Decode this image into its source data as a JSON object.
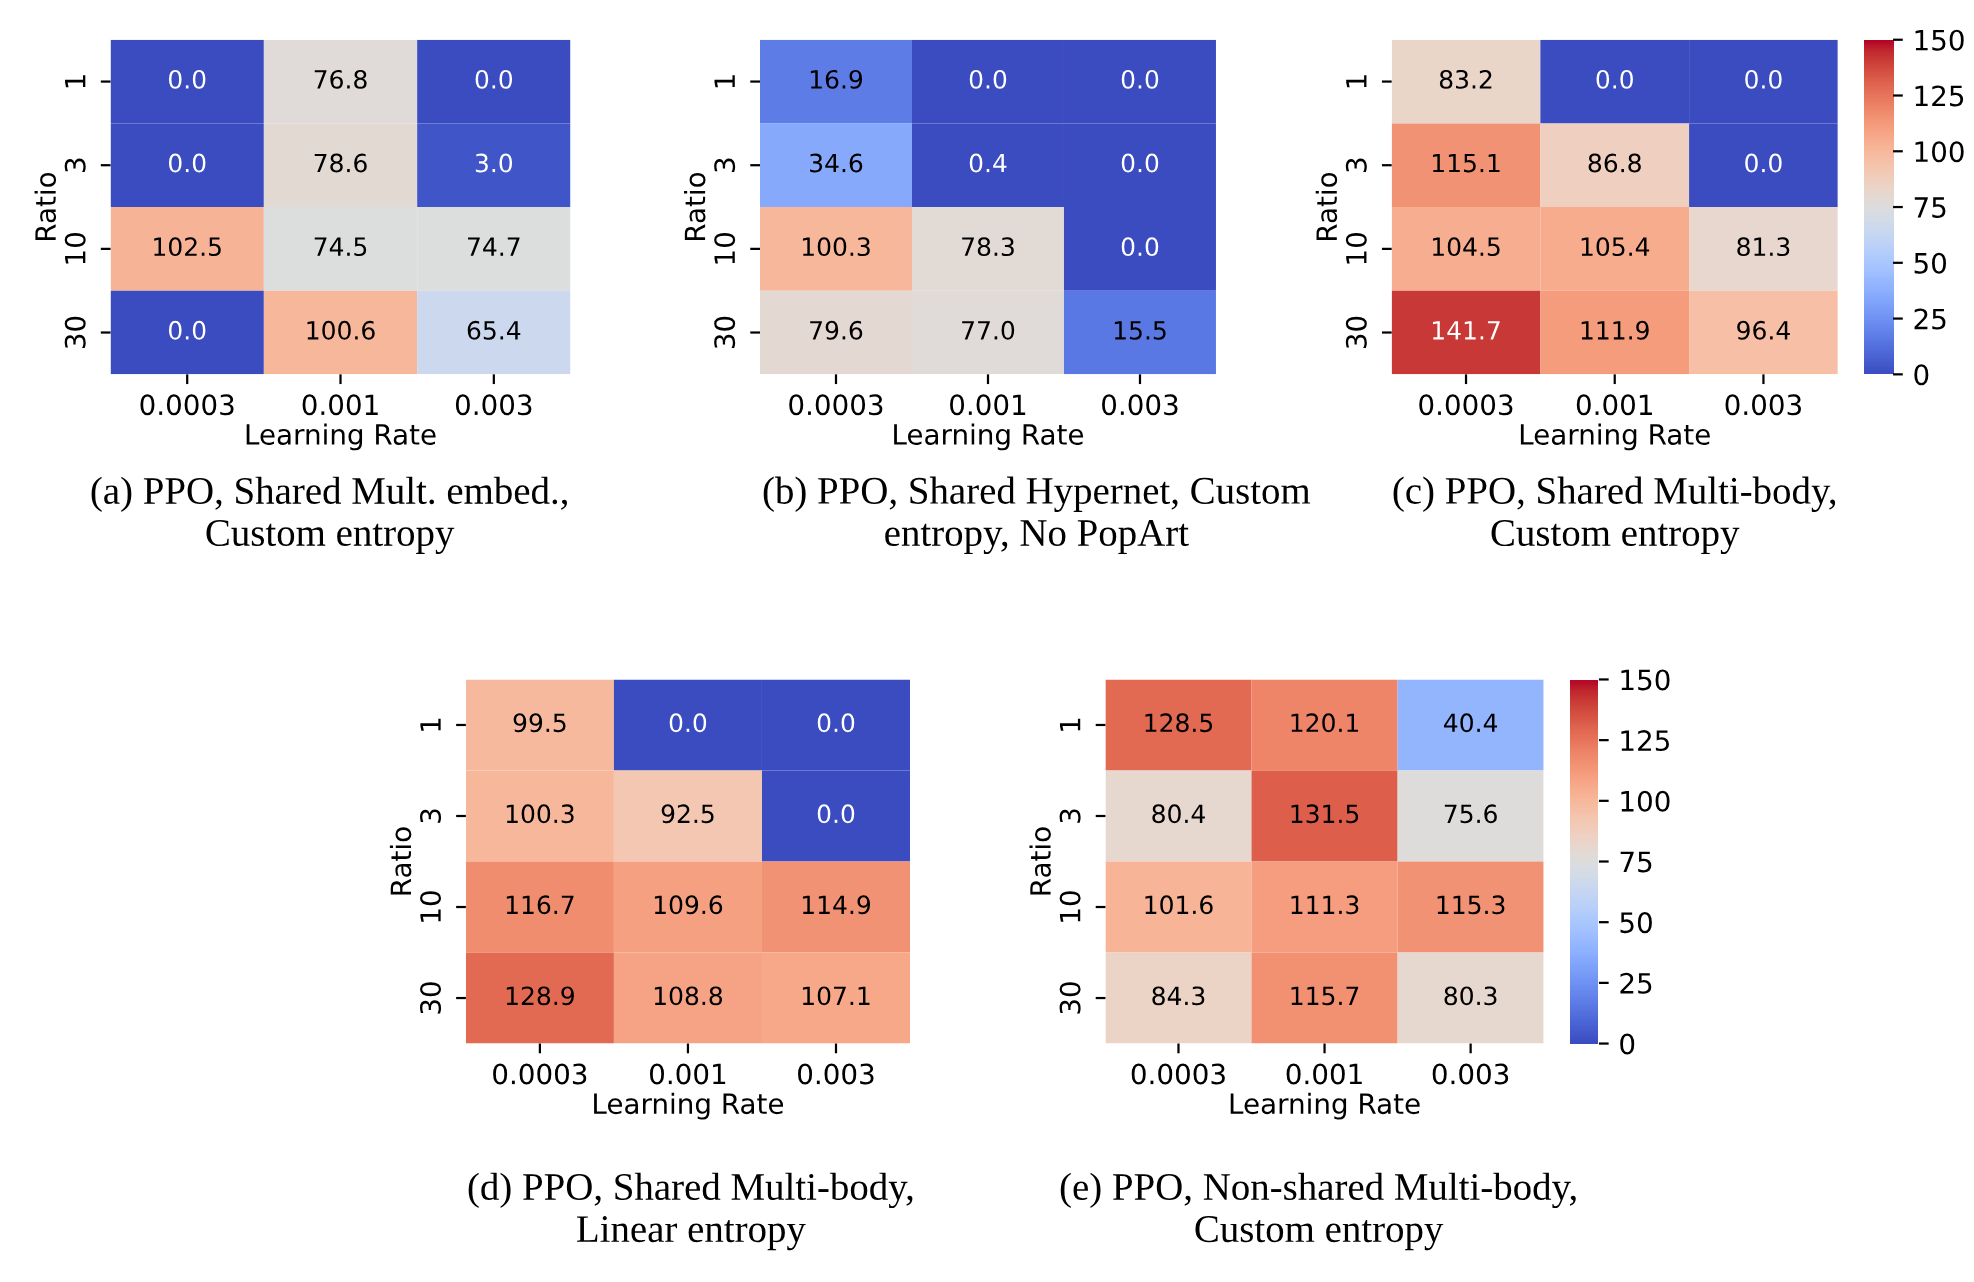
{
  "chart_data": [
    {
      "type": "heatmap",
      "categories": [
        "0.0003",
        "0.001",
        "0.003"
      ],
      "y_categories": [
        "1",
        "3",
        "10",
        "30"
      ],
      "xlabel": "Learning Rate",
      "ylabel": "Ratio",
      "cells": [
        [
          0.0,
          76.8,
          0.0
        ],
        [
          0.0,
          78.6,
          3.0
        ],
        [
          102.5,
          74.5,
          74.7
        ],
        [
          0.0,
          100.6,
          65.4
        ]
      ],
      "cell_labels": [
        [
          "0.0",
          "76.8",
          "0.0"
        ],
        [
          "0.0",
          "78.6",
          "3.0"
        ],
        [
          "102.5",
          "74.5",
          "74.7"
        ],
        [
          "0.0",
          "100.6",
          "65.4"
        ]
      ],
      "annotations": [
        "(a) PPO, Shared Mult. embed.,\nCustom entropy"
      ]
    },
    {
      "type": "heatmap",
      "categories": [
        "0.0003",
        "0.001",
        "0.003"
      ],
      "y_categories": [
        "1",
        "3",
        "10",
        "30"
      ],
      "xlabel": "Learning Rate",
      "ylabel": "Ratio",
      "cells": [
        [
          16.9,
          0.0,
          0.0
        ],
        [
          34.6,
          0.4,
          0.0
        ],
        [
          100.3,
          78.3,
          0.0
        ],
        [
          79.6,
          77.0,
          15.5
        ]
      ],
      "cell_labels": [
        [
          "16.9",
          "0.0",
          "0.0"
        ],
        [
          "34.6",
          "0.4",
          "0.0"
        ],
        [
          "100.3",
          "78.3",
          "0.0"
        ],
        [
          "79.6",
          "77.0",
          "15.5"
        ]
      ],
      "annotations": [
        "(b) PPO, Shared Hypernet, Custom\nentropy, No PopArt"
      ]
    },
    {
      "type": "heatmap",
      "categories": [
        "0.0003",
        "0.001",
        "0.003"
      ],
      "y_categories": [
        "1",
        "3",
        "10",
        "30"
      ],
      "xlabel": "Learning Rate",
      "ylabel": "Ratio",
      "clim": [
        0,
        150
      ],
      "cticks": [
        0,
        25,
        50,
        75,
        100,
        125,
        150
      ],
      "cells": [
        [
          83.2,
          0.0,
          0.0
        ],
        [
          115.1,
          86.8,
          0.0
        ],
        [
          104.5,
          105.4,
          81.3
        ],
        [
          141.7,
          111.9,
          96.4
        ]
      ],
      "cell_labels": [
        [
          "83.2",
          "0.0",
          "0.0"
        ],
        [
          "115.1",
          "86.8",
          "0.0"
        ],
        [
          "104.5",
          "105.4",
          "81.3"
        ],
        [
          "141.7",
          "111.9",
          "96.4"
        ]
      ],
      "annotations": [
        "(c) PPO, Shared Multi-body,\nCustom entropy"
      ]
    },
    {
      "type": "heatmap",
      "categories": [
        "0.0003",
        "0.001",
        "0.003"
      ],
      "y_categories": [
        "1",
        "3",
        "10",
        "30"
      ],
      "xlabel": "Learning Rate",
      "ylabel": "Ratio",
      "cells": [
        [
          99.5,
          0.0,
          0.0
        ],
        [
          100.3,
          92.5,
          0.0
        ],
        [
          116.7,
          109.6,
          114.9
        ],
        [
          128.9,
          108.8,
          107.1
        ]
      ],
      "cell_labels": [
        [
          "99.5",
          "0.0",
          "0.0"
        ],
        [
          "100.3",
          "92.5",
          "0.0"
        ],
        [
          "116.7",
          "109.6",
          "114.9"
        ],
        [
          "128.9",
          "108.8",
          "107.1"
        ]
      ],
      "annotations": [
        "(d) PPO, Shared Multi-body,\nLinear entropy"
      ]
    },
    {
      "type": "heatmap",
      "categories": [
        "0.0003",
        "0.001",
        "0.003"
      ],
      "y_categories": [
        "1",
        "3",
        "10",
        "30"
      ],
      "xlabel": "Learning Rate",
      "ylabel": "Ratio",
      "clim": [
        0,
        150
      ],
      "cticks": [
        0,
        25,
        50,
        75,
        100,
        125,
        150
      ],
      "cells": [
        [
          128.5,
          120.1,
          40.4
        ],
        [
          80.4,
          131.5,
          75.6
        ],
        [
          101.6,
          111.3,
          115.3
        ],
        [
          84.3,
          115.7,
          80.3
        ]
      ],
      "cell_labels": [
        [
          "128.5",
          "120.1",
          "40.4"
        ],
        [
          "80.4",
          "131.5",
          "75.6"
        ],
        [
          "101.6",
          "111.3",
          "115.3"
        ],
        [
          "84.3",
          "115.7",
          "80.3"
        ]
      ],
      "annotations": [
        "(e) PPO, Non-shared Multi-body,\nCustom entropy"
      ]
    }
  ]
}
